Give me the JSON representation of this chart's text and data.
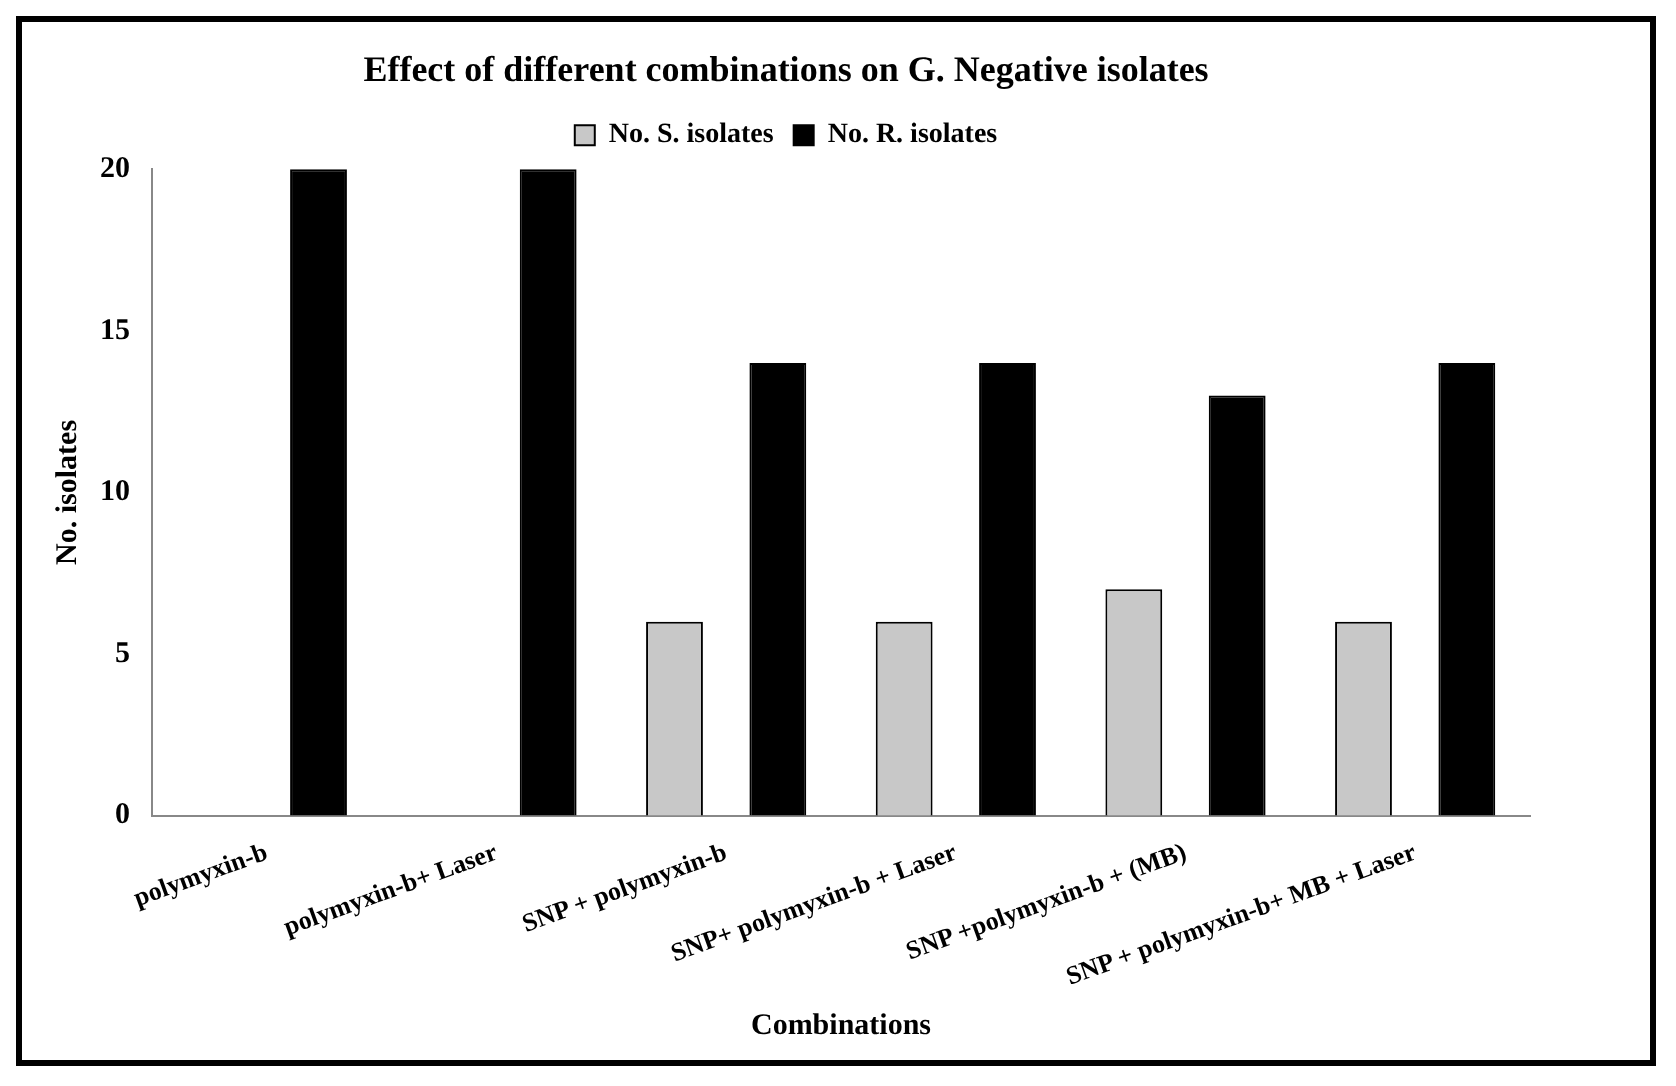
{
  "chart_data": {
    "type": "bar",
    "title": "Effect of different combinations on G. Negative isolates",
    "xlabel": "Combinations",
    "ylabel": "No. isolates",
    "categories": [
      "polymyxin-b",
      "polymyxin-b+ Laser",
      "SNP + polymyxin-b",
      "SNP+ polymyxin-b + Laser",
      "SNP +polymyxin-b + (MB)",
      "SNP + polymyxin-b+ MB + Laser"
    ],
    "series": [
      {
        "name": "No. S. isolates",
        "color": "#c8c8c8",
        "values": [
          0,
          0,
          6,
          6,
          7,
          6
        ]
      },
      {
        "name": "No. R. isolates",
        "color": "#000000",
        "values": [
          20,
          20,
          14,
          14,
          13,
          14
        ]
      }
    ],
    "ylim": [
      0,
      20
    ],
    "yticks": [
      0,
      5,
      10,
      15,
      20
    ],
    "grid": false,
    "legend": "top"
  }
}
